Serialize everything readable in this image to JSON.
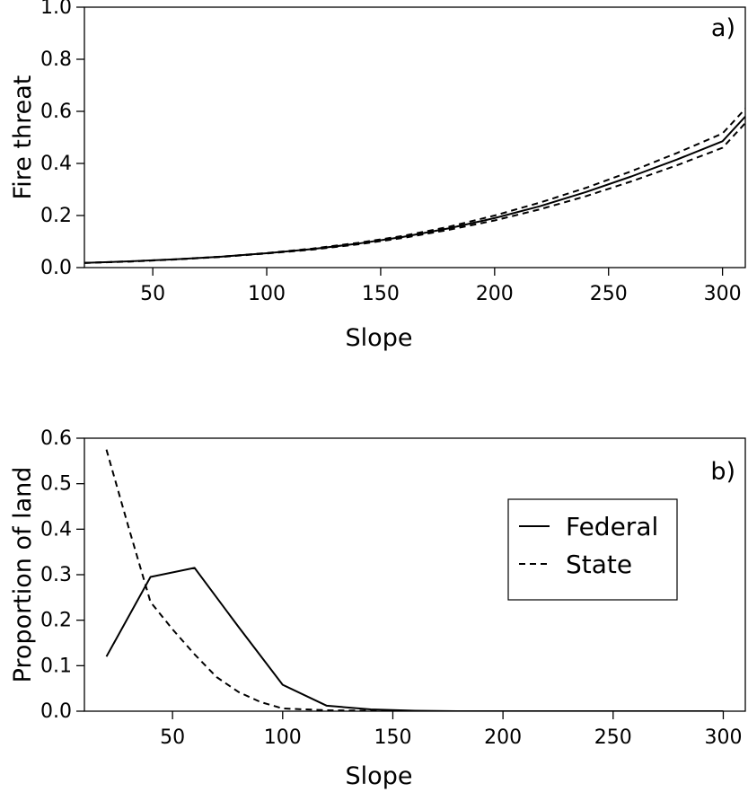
{
  "chart_data": [
    {
      "type": "line",
      "panel_label": "a)",
      "xlabel": "Slope",
      "ylabel": "Fire threat",
      "xlim": [
        20,
        310
      ],
      "ylim": [
        0,
        1.0
      ],
      "xticks": [
        50,
        100,
        150,
        200,
        250,
        300
      ],
      "yticks": [
        0.0,
        0.2,
        0.4,
        0.6,
        0.8,
        1.0
      ],
      "xtick_labels": [
        "50",
        "100",
        "150",
        "200",
        "250",
        "300"
      ],
      "ytick_labels": [
        "0.0",
        "0.2",
        "0.4",
        "0.6",
        "0.8",
        "1.0"
      ],
      "series": [
        {
          "style": "solid",
          "x": [
            20,
            40,
            60,
            80,
            100,
            120,
            140,
            160,
            180,
            200,
            220,
            240,
            260,
            280,
            300,
            310
          ],
          "y": [
            0.018,
            0.024,
            0.032,
            0.042,
            0.055,
            0.071,
            0.092,
            0.118,
            0.151,
            0.19,
            0.236,
            0.29,
            0.35,
            0.415,
            0.485,
            0.58
          ]
        },
        {
          "style": "dashed",
          "x": [
            20,
            40,
            60,
            80,
            100,
            120,
            140,
            160,
            180,
            200,
            220,
            240,
            260,
            280,
            300,
            310
          ],
          "y": [
            0.018,
            0.024,
            0.032,
            0.042,
            0.056,
            0.073,
            0.095,
            0.122,
            0.157,
            0.2,
            0.25,
            0.306,
            0.37,
            0.44,
            0.515,
            0.61
          ]
        },
        {
          "style": "dashed",
          "x": [
            20,
            40,
            60,
            80,
            100,
            120,
            140,
            160,
            180,
            200,
            220,
            240,
            260,
            280,
            300,
            310
          ],
          "y": [
            0.018,
            0.023,
            0.031,
            0.041,
            0.054,
            0.069,
            0.089,
            0.114,
            0.145,
            0.181,
            0.224,
            0.274,
            0.331,
            0.393,
            0.46,
            0.555
          ]
        }
      ]
    },
    {
      "type": "line",
      "panel_label": "b)",
      "xlabel": "Slope",
      "ylabel": "Proportion of land",
      "xlim": [
        10,
        310
      ],
      "ylim": [
        0,
        0.6
      ],
      "xticks": [
        50,
        100,
        150,
        200,
        250,
        300
      ],
      "yticks": [
        0.0,
        0.1,
        0.2,
        0.3,
        0.4,
        0.5,
        0.6
      ],
      "xtick_labels": [
        "50",
        "100",
        "150",
        "200",
        "250",
        "300"
      ],
      "ytick_labels": [
        "0.0",
        "0.1",
        "0.2",
        "0.3",
        "0.4",
        "0.5",
        "0.6"
      ],
      "legend_position": "top-right",
      "series": [
        {
          "name": "Federal",
          "style": "solid",
          "x": [
            20,
            40,
            60,
            80,
            100,
            120,
            140,
            160,
            180,
            200,
            220,
            240,
            260,
            280,
            300
          ],
          "y": [
            0.12,
            0.295,
            0.315,
            0.185,
            0.058,
            0.012,
            0.004,
            0.001,
            0.0,
            0.0,
            0.0,
            0.0,
            0.0,
            0.0,
            0.0
          ]
        },
        {
          "name": "State",
          "style": "dashed",
          "x": [
            20,
            30,
            40,
            50,
            60,
            70,
            80,
            90,
            100,
            120,
            140,
            160,
            180,
            200,
            220,
            240,
            260,
            280,
            300
          ],
          "y": [
            0.575,
            0.405,
            0.24,
            0.18,
            0.125,
            0.075,
            0.042,
            0.02,
            0.006,
            0.002,
            0.001,
            0.0,
            0.0,
            0.0,
            0.0,
            0.0,
            0.0,
            0.0,
            0.0
          ]
        }
      ]
    }
  ]
}
